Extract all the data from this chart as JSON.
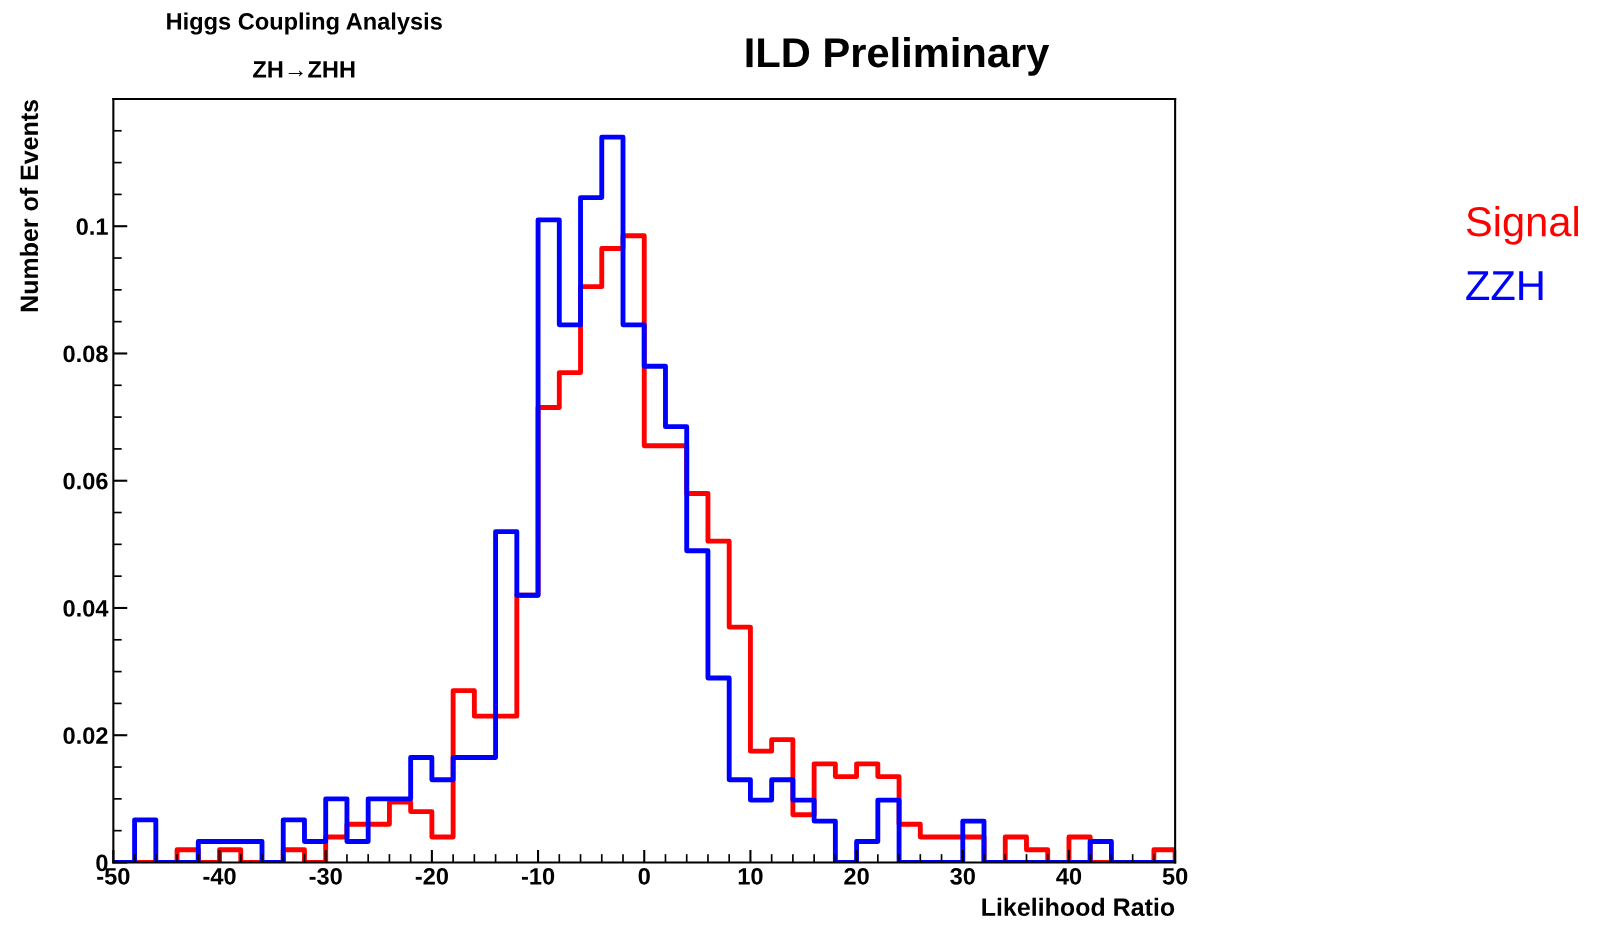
{
  "chart_data": {
    "type": "histogram",
    "title": "ILD Preliminary",
    "annotations": [
      "Higgs Coupling Analysis",
      "ZH→ZHH"
    ],
    "xlabel": "Likelihood Ratio",
    "ylabel": "Number of Events",
    "bins": [
      -50,
      -48,
      -46,
      -44,
      -42,
      -40,
      -38,
      -36,
      -34,
      -32,
      -30,
      -28,
      -26,
      -24,
      -22,
      -20,
      -18,
      -16,
      -14,
      -12,
      -10,
      -8,
      -6,
      -4,
      -2,
      0,
      2,
      4,
      6,
      8,
      10,
      12,
      14,
      16,
      18,
      20,
      22,
      24,
      26,
      28,
      30,
      32,
      34,
      36,
      38,
      40,
      42,
      44,
      46,
      48,
      50
    ],
    "series": [
      {
        "name": "Signal",
        "color": "#ff0000",
        "values": [
          0,
          0,
          0,
          0.002,
          0,
          0.002,
          0,
          0,
          0.002,
          0,
          0.004,
          0.006,
          0.006,
          0.0095,
          0.008,
          0.004,
          0.027,
          0.023,
          0.023,
          0.042,
          0.0715,
          0.077,
          0.0905,
          0.0965,
          0.0985,
          0.0655,
          0.0655,
          0.058,
          0.0505,
          0.037,
          0.0175,
          0.0193,
          0.0075,
          0.0155,
          0.0135,
          0.0155,
          0.0135,
          0.006,
          0.004,
          0.004,
          0.004,
          0,
          0.004,
          0.002,
          0,
          0.004,
          0,
          0,
          0,
          0.002
        ]
      },
      {
        "name": "ZZH",
        "color": "#0000ff",
        "values": [
          0,
          0.0067,
          0,
          0,
          0.0033,
          0.0033,
          0.0033,
          0,
          0.0067,
          0.0033,
          0.01,
          0.0033,
          0.01,
          0.01,
          0.0165,
          0.013,
          0.0165,
          0.0165,
          0.052,
          0.042,
          0.101,
          0.0845,
          0.1045,
          0.114,
          0.0845,
          0.078,
          0.0685,
          0.049,
          0.029,
          0.013,
          0.0098,
          0.013,
          0.0098,
          0.0065,
          0,
          0.0033,
          0.0098,
          0,
          0,
          0,
          0.0065,
          0,
          0,
          0,
          0,
          0,
          0.0033,
          0,
          0,
          0
        ]
      }
    ],
    "xlim": [
      -50,
      50
    ],
    "xticks": [
      -50,
      -40,
      -30,
      -20,
      -10,
      0,
      10,
      20,
      30,
      40,
      50
    ],
    "ylim": [
      0,
      0.12
    ],
    "yticks": [
      0,
      0.02,
      0.04,
      0.06,
      0.08,
      0.1
    ],
    "grid": false,
    "legend": "right"
  }
}
